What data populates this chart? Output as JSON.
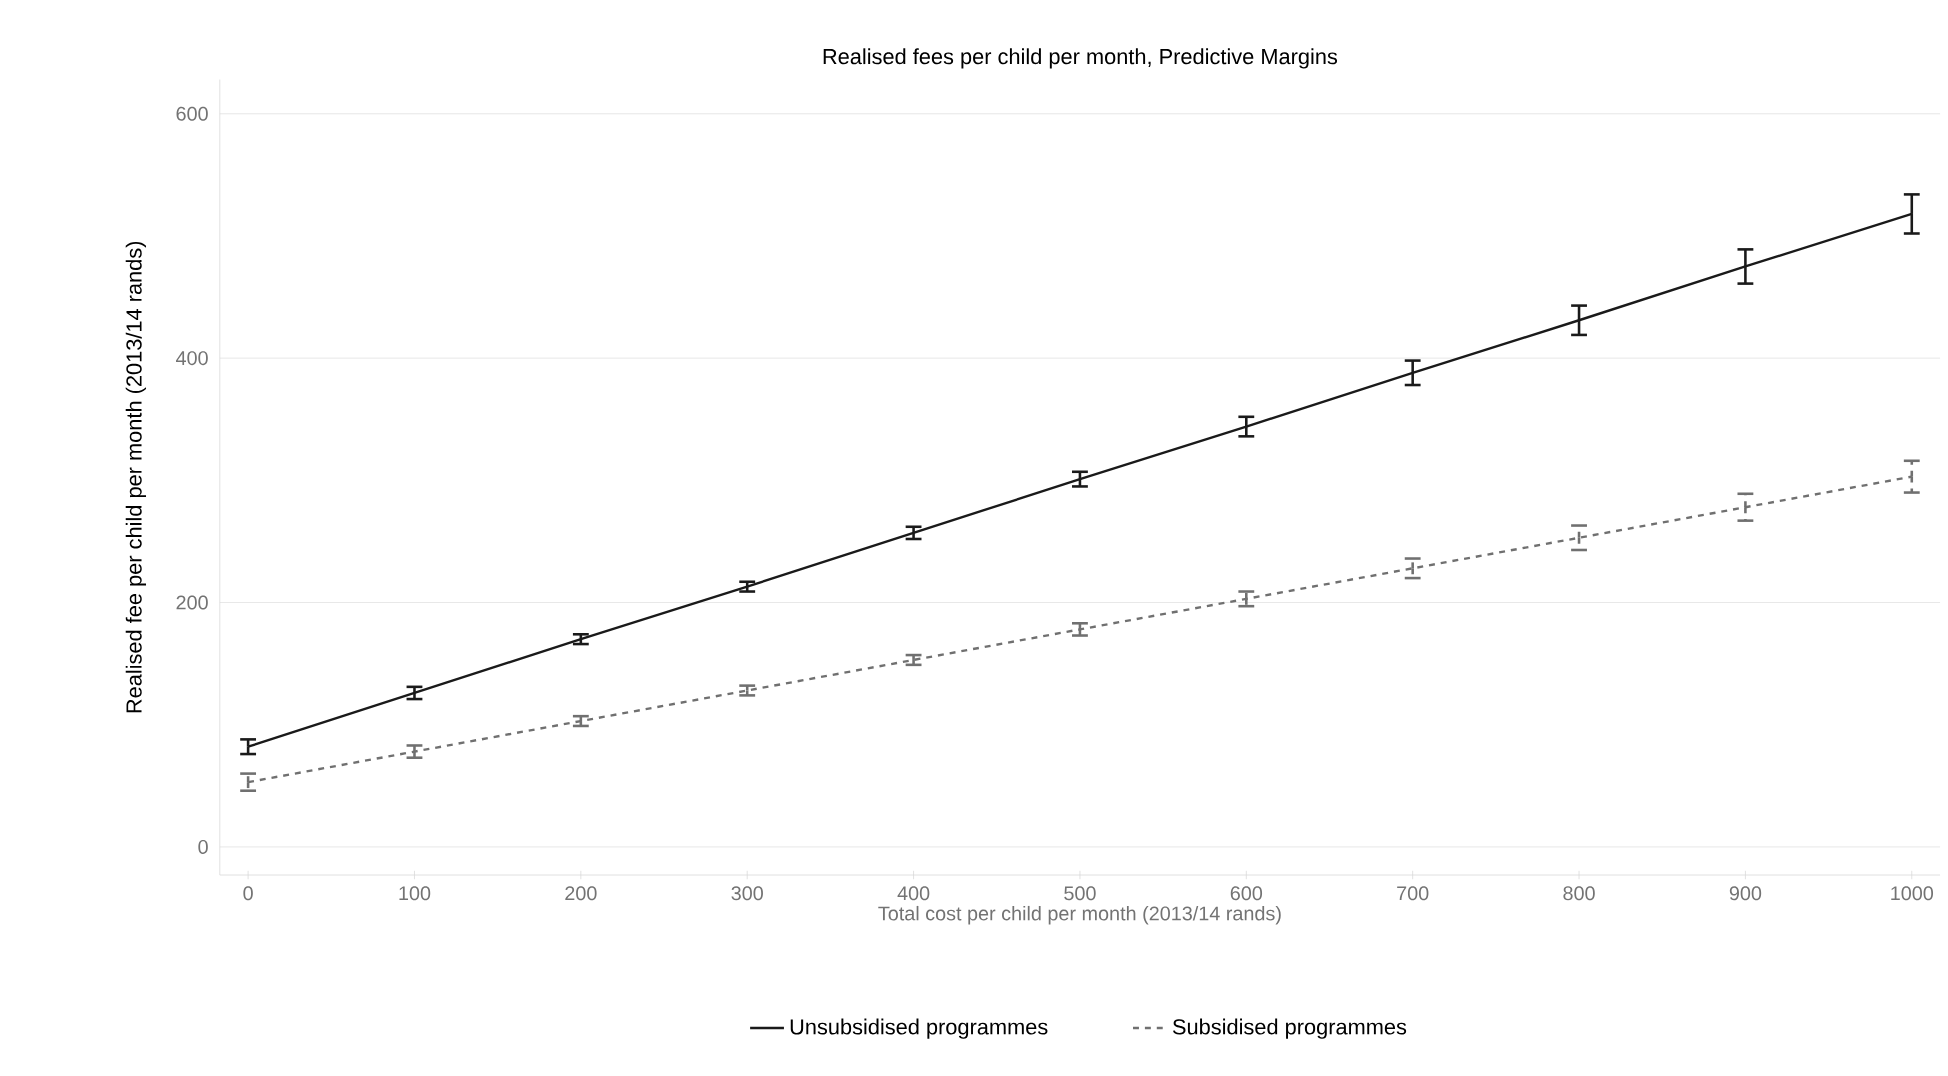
{
  "chart_data": {
    "type": "line",
    "title": "Realised fees per child per month, Predictive Margins",
    "xlabel": "Total cost per child per month (2013/14 rands)",
    "ylabel": "Realised fee per child per month (2013/14 rands)",
    "x": [
      0,
      100,
      200,
      300,
      400,
      500,
      600,
      700,
      800,
      900,
      1000
    ],
    "series": [
      {
        "name": "Unsubsidised programmes",
        "color": "#1a1a1a",
        "line_style": "solid",
        "values": [
          82,
          126,
          170,
          213,
          257,
          301,
          344,
          388,
          431,
          475,
          518
        ],
        "errors": [
          6,
          5,
          4,
          4,
          5,
          6,
          8,
          10,
          12,
          14,
          16
        ]
      },
      {
        "name": "Subsidised programmes",
        "color": "#707070",
        "line_style": "dashed",
        "values": [
          53,
          78,
          103,
          128,
          153,
          178,
          203,
          228,
          253,
          278,
          303
        ],
        "errors": [
          7,
          5,
          4,
          4,
          4,
          5,
          6,
          8,
          10,
          11,
          13
        ]
      }
    ],
    "xlim": [
      -17,
      1017
    ],
    "ylim": [
      -23,
      628
    ],
    "xticks": [
      0,
      100,
      200,
      300,
      400,
      500,
      600,
      700,
      800,
      900,
      1000
    ],
    "yticks": [
      0,
      200,
      400,
      600
    ],
    "grid": "y",
    "legend": "bottom",
    "marker": "none"
  }
}
